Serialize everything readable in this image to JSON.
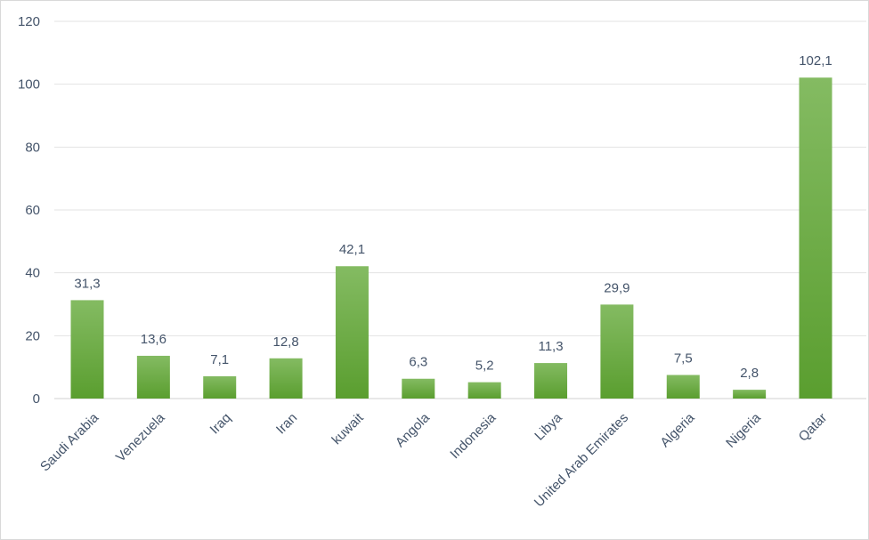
{
  "chart_data": {
    "type": "bar",
    "title": "",
    "xlabel": "",
    "ylabel": "",
    "ylim": [
      0,
      120
    ],
    "yticks": [
      0,
      20,
      40,
      60,
      80,
      100,
      120
    ],
    "ytick_labels": [
      "0",
      "20",
      "40",
      "60",
      "80",
      "100",
      "120"
    ],
    "grid": true,
    "legend": "none",
    "bar_color_top": "#84bb62",
    "bar_color_bottom": "#5a9e2f",
    "categories": [
      "Saudi Arabia",
      "Venezuela",
      "Iraq",
      "Iran",
      "kuwait",
      "Angola",
      "Indonesia",
      "Libya",
      "United Arab Emirates",
      "Algeria",
      "Nigeria",
      "Qatar"
    ],
    "values": [
      31.3,
      13.6,
      7.1,
      12.8,
      42.1,
      6.3,
      5.2,
      11.3,
      29.9,
      7.5,
      2.8,
      102.1
    ],
    "value_labels": [
      "31,3",
      "13,6",
      "7,1",
      "12,8",
      "42,1",
      "6,3",
      "5,2",
      "11,3",
      "29,9",
      "7,5",
      "2,8",
      "102,1"
    ]
  }
}
